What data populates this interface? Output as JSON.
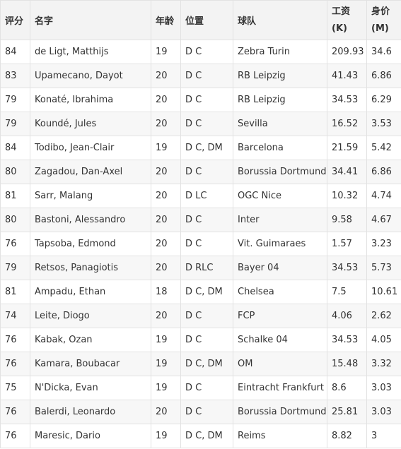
{
  "headers": {
    "rating": "评分",
    "name": "名字",
    "age": "年龄",
    "position": "位置",
    "team": "球队",
    "wage_line1": "工资",
    "wage_line2": "(K)",
    "value_line1": "身价",
    "value_line2": "(M)"
  },
  "rows": [
    {
      "rating": "84",
      "name": "de Ligt, Matthijs",
      "age": "19",
      "position": "D C",
      "team": "Zebra Turin",
      "wage": "209.93",
      "value": "34.6"
    },
    {
      "rating": "83",
      "name": "Upamecano, Dayot",
      "age": "20",
      "position": "D C",
      "team": "RB Leipzig",
      "wage": "41.43",
      "value": "6.86"
    },
    {
      "rating": "79",
      "name": "Konaté, Ibrahima",
      "age": "20",
      "position": "D C",
      "team": "RB Leipzig",
      "wage": "34.53",
      "value": "6.29"
    },
    {
      "rating": "79",
      "name": "Koundé, Jules",
      "age": "20",
      "position": "D C",
      "team": "Sevilla",
      "wage": "16.52",
      "value": "3.53"
    },
    {
      "rating": "84",
      "name": "Todibo, Jean-Clair",
      "age": "19",
      "position": "D C, DM",
      "team": "Barcelona",
      "wage": "21.59",
      "value": "5.42"
    },
    {
      "rating": "80",
      "name": "Zagadou, Dan-Axel",
      "age": "20",
      "position": "D C",
      "team": "Borussia Dortmund",
      "wage": "34.41",
      "value": "6.86"
    },
    {
      "rating": "81",
      "name": "Sarr, Malang",
      "age": "20",
      "position": "D LC",
      "team": "OGC Nice",
      "wage": "10.32",
      "value": "4.74"
    },
    {
      "rating": "80",
      "name": "Bastoni, Alessandro",
      "age": "20",
      "position": "D C",
      "team": "Inter",
      "wage": "9.58",
      "value": "4.67"
    },
    {
      "rating": "76",
      "name": "Tapsoba, Edmond",
      "age": "20",
      "position": "D C",
      "team": "Vit. Guimaraes",
      "wage": "1.57",
      "value": "3.23"
    },
    {
      "rating": "79",
      "name": "Retsos, Panagiotis",
      "age": "20",
      "position": "D RLC",
      "team": "Bayer 04",
      "wage": "34.53",
      "value": "5.73"
    },
    {
      "rating": "81",
      "name": "Ampadu, Ethan",
      "age": "18",
      "position": "D C, DM",
      "team": "Chelsea",
      "wage": "7.5",
      "value": "10.61"
    },
    {
      "rating": "74",
      "name": "Leite, Diogo",
      "age": "20",
      "position": "D C",
      "team": "FCP",
      "wage": "4.06",
      "value": "2.62"
    },
    {
      "rating": "76",
      "name": "Kabak, Ozan",
      "age": "19",
      "position": "D C",
      "team": "Schalke 04",
      "wage": "34.53",
      "value": "4.05"
    },
    {
      "rating": "76",
      "name": "Kamara, Boubacar",
      "age": "19",
      "position": "D C, DM",
      "team": "OM",
      "wage": "15.48",
      "value": "3.32"
    },
    {
      "rating": "75",
      "name": "N'Dicka, Evan",
      "age": "19",
      "position": "D C",
      "team": "Eintracht Frankfurt",
      "wage": "8.6",
      "value": "3.03"
    },
    {
      "rating": "76",
      "name": "Balerdi, Leonardo",
      "age": "20",
      "position": "D C",
      "team": "Borussia Dortmund",
      "wage": "25.81",
      "value": "3.03"
    },
    {
      "rating": "76",
      "name": "Maresic, Dario",
      "age": "19",
      "position": "D C, DM",
      "team": "Reims",
      "wage": "8.82",
      "value": "3"
    }
  ]
}
